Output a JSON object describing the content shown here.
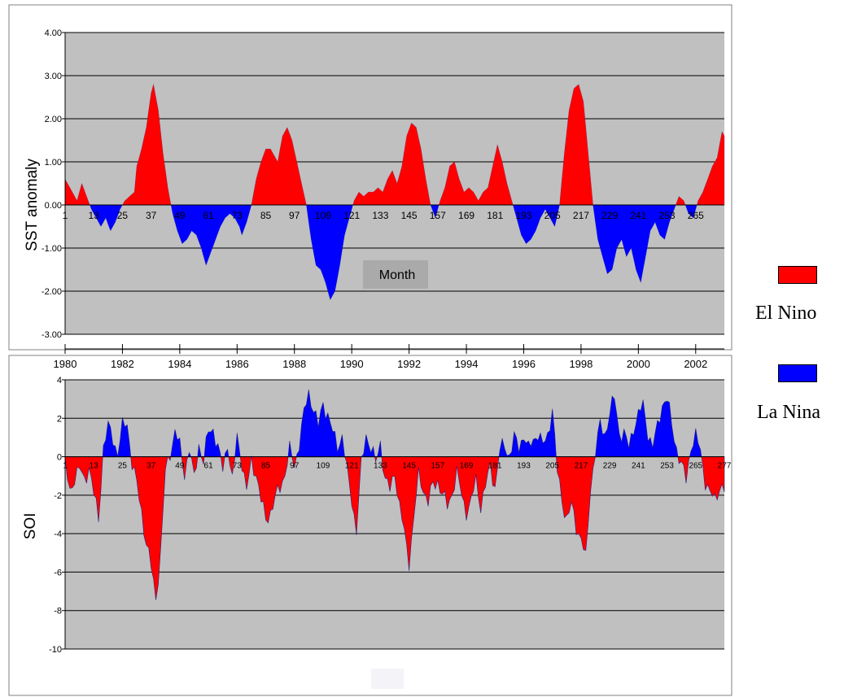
{
  "colors": {
    "el_nino": "#ff0000",
    "la_nina": "#0000ff",
    "plot_bg": "#c0c0c0",
    "grid": "#000000",
    "month_box": "#aaaaaa"
  },
  "legend": {
    "items": [
      {
        "label": "El Nino",
        "color": "#ff0000"
      },
      {
        "label": "La Nina",
        "color": "#0000ff"
      }
    ]
  },
  "years": [
    "1980",
    "1982",
    "1984",
    "1986",
    "1988",
    "1990",
    "1992",
    "1994",
    "1996",
    "1998",
    "2000",
    "2002"
  ],
  "chart_data": [
    {
      "type": "area",
      "ylabel": "SST anomaly",
      "xlabel": "Month",
      "ylim": [
        -3,
        4
      ],
      "yticks": [
        "4.00",
        "3.00",
        "2.00",
        "1.00",
        "0.00",
        "-1.00",
        "-2.00",
        "-3.00"
      ],
      "xticks": [
        "1",
        "13",
        "25",
        "37",
        "49",
        "61",
        "73",
        "85",
        "97",
        "109",
        "121",
        "133",
        "145",
        "157",
        "169",
        "181",
        "193",
        "205",
        "217",
        "229",
        "241",
        "253",
        "265"
      ],
      "grid": true,
      "x_range": [
        1,
        277
      ],
      "anchors": [
        [
          1,
          0.6
        ],
        [
          4,
          0.3
        ],
        [
          6,
          0.1
        ],
        [
          8,
          0.5
        ],
        [
          10,
          0.2
        ],
        [
          12,
          -0.1
        ],
        [
          14,
          -0.3
        ],
        [
          16,
          -0.5
        ],
        [
          18,
          -0.3
        ],
        [
          20,
          -0.6
        ],
        [
          22,
          -0.4
        ],
        [
          24,
          -0.1
        ],
        [
          26,
          0.1
        ],
        [
          28,
          0.2
        ],
        [
          30,
          0.3
        ],
        [
          31,
          0.9
        ],
        [
          33,
          1.3
        ],
        [
          35,
          1.8
        ],
        [
          37,
          2.6
        ],
        [
          38,
          2.8
        ],
        [
          40,
          2.2
        ],
        [
          42,
          1.2
        ],
        [
          44,
          0.4
        ],
        [
          46,
          -0.2
        ],
        [
          48,
          -0.6
        ],
        [
          50,
          -0.9
        ],
        [
          52,
          -0.8
        ],
        [
          54,
          -0.6
        ],
        [
          56,
          -0.7
        ],
        [
          58,
          -1.0
        ],
        [
          60,
          -1.4
        ],
        [
          62,
          -1.1
        ],
        [
          64,
          -0.8
        ],
        [
          66,
          -0.5
        ],
        [
          68,
          -0.3
        ],
        [
          70,
          -0.2
        ],
        [
          72,
          -0.3
        ],
        [
          74,
          -0.5
        ],
        [
          75,
          -0.7
        ],
        [
          77,
          -0.4
        ],
        [
          79,
          0.0
        ],
        [
          81,
          0.6
        ],
        [
          83,
          1.0
        ],
        [
          85,
          1.3
        ],
        [
          87,
          1.3
        ],
        [
          88,
          1.2
        ],
        [
          90,
          1.0
        ],
        [
          92,
          1.6
        ],
        [
          94,
          1.8
        ],
        [
          96,
          1.5
        ],
        [
          98,
          1.0
        ],
        [
          100,
          0.5
        ],
        [
          102,
          0.0
        ],
        [
          104,
          -0.8
        ],
        [
          106,
          -1.4
        ],
        [
          108,
          -1.5
        ],
        [
          110,
          -1.8
        ],
        [
          112,
          -2.2
        ],
        [
          114,
          -2.0
        ],
        [
          116,
          -1.4
        ],
        [
          118,
          -0.7
        ],
        [
          120,
          -0.3
        ],
        [
          122,
          0.1
        ],
        [
          124,
          0.3
        ],
        [
          126,
          0.2
        ],
        [
          128,
          0.3
        ],
        [
          130,
          0.3
        ],
        [
          132,
          0.4
        ],
        [
          134,
          0.3
        ],
        [
          136,
          0.6
        ],
        [
          138,
          0.8
        ],
        [
          140,
          0.5
        ],
        [
          142,
          0.9
        ],
        [
          144,
          1.6
        ],
        [
          146,
          1.9
        ],
        [
          148,
          1.8
        ],
        [
          150,
          1.3
        ],
        [
          152,
          0.6
        ],
        [
          154,
          0.0
        ],
        [
          156,
          -0.3
        ],
        [
          158,
          0.1
        ],
        [
          160,
          0.4
        ],
        [
          162,
          0.9
        ],
        [
          164,
          1.0
        ],
        [
          166,
          0.6
        ],
        [
          168,
          0.3
        ],
        [
          170,
          0.4
        ],
        [
          172,
          0.3
        ],
        [
          174,
          0.1
        ],
        [
          176,
          0.3
        ],
        [
          178,
          0.4
        ],
        [
          180,
          0.9
        ],
        [
          182,
          1.4
        ],
        [
          184,
          1.0
        ],
        [
          186,
          0.5
        ],
        [
          188,
          0.1
        ],
        [
          190,
          -0.3
        ],
        [
          192,
          -0.7
        ],
        [
          194,
          -0.9
        ],
        [
          196,
          -0.8
        ],
        [
          198,
          -0.6
        ],
        [
          200,
          -0.3
        ],
        [
          202,
          -0.1
        ],
        [
          204,
          -0.3
        ],
        [
          206,
          -0.5
        ],
        [
          208,
          0.0
        ],
        [
          210,
          1.2
        ],
        [
          212,
          2.2
        ],
        [
          214,
          2.7
        ],
        [
          216,
          2.8
        ],
        [
          218,
          2.4
        ],
        [
          220,
          1.2
        ],
        [
          222,
          0.0
        ],
        [
          224,
          -0.8
        ],
        [
          226,
          -1.2
        ],
        [
          228,
          -1.6
        ],
        [
          230,
          -1.5
        ],
        [
          232,
          -1.0
        ],
        [
          234,
          -0.8
        ],
        [
          236,
          -1.2
        ],
        [
          238,
          -1.0
        ],
        [
          240,
          -1.5
        ],
        [
          242,
          -1.8
        ],
        [
          244,
          -1.2
        ],
        [
          246,
          -0.6
        ],
        [
          248,
          -0.4
        ],
        [
          250,
          -0.7
        ],
        [
          252,
          -0.8
        ],
        [
          254,
          -0.4
        ],
        [
          256,
          -0.1
        ],
        [
          258,
          0.2
        ],
        [
          260,
          0.1
        ],
        [
          262,
          -0.2
        ],
        [
          264,
          -0.3
        ],
        [
          266,
          0.1
        ],
        [
          268,
          0.3
        ],
        [
          270,
          0.6
        ],
        [
          272,
          0.9
        ],
        [
          274,
          1.1
        ],
        [
          276,
          1.7
        ],
        [
          277,
          1.6
        ]
      ]
    },
    {
      "type": "area",
      "ylabel": "SOI",
      "ylim": [
        -10,
        4
      ],
      "yticks": [
        "4",
        "2",
        "0",
        "-2",
        "-4",
        "-6",
        "-8",
        "-10"
      ],
      "xticks": [
        "1",
        "13",
        "25",
        "37",
        "49",
        "61",
        "73",
        "85",
        "97",
        "109",
        "121",
        "133",
        "145",
        "157",
        "169",
        "181",
        "193",
        "205",
        "217",
        "229",
        "241",
        "253",
        "265",
        "277"
      ],
      "grid": true,
      "x_range": [
        1,
        277
      ],
      "anchors": [
        [
          1,
          -0.5
        ],
        [
          3,
          -1.8
        ],
        [
          5,
          -1.0
        ],
        [
          7,
          -0.7
        ],
        [
          9,
          -1.2
        ],
        [
          11,
          -0.5
        ],
        [
          13,
          -2.0
        ],
        [
          15,
          -3.2
        ],
        [
          17,
          0.5
        ],
        [
          19,
          1.5
        ],
        [
          21,
          1.0
        ],
        [
          23,
          0.2
        ],
        [
          25,
          1.5
        ],
        [
          27,
          1.8
        ],
        [
          29,
          -0.3
        ],
        [
          31,
          -1.5
        ],
        [
          33,
          -2.8
        ],
        [
          35,
          -4.5
        ],
        [
          37,
          -5.8
        ],
        [
          39,
          -7.3
        ],
        [
          41,
          -5.0
        ],
        [
          43,
          -0.8
        ],
        [
          45,
          0.3
        ],
        [
          47,
          1.3
        ],
        [
          49,
          0.5
        ],
        [
          51,
          -0.8
        ],
        [
          53,
          0.4
        ],
        [
          55,
          -1.2
        ],
        [
          57,
          0.7
        ],
        [
          59,
          -0.3
        ],
        [
          61,
          1.3
        ],
        [
          63,
          1.5
        ],
        [
          65,
          0.4
        ],
        [
          67,
          -0.7
        ],
        [
          69,
          0.8
        ],
        [
          71,
          -1.3
        ],
        [
          73,
          1.0
        ],
        [
          75,
          -0.2
        ],
        [
          77,
          -1.8
        ],
        [
          79,
          -0.3
        ],
        [
          81,
          -0.8
        ],
        [
          83,
          -2.3
        ],
        [
          85,
          -3.3
        ],
        [
          87,
          -2.8
        ],
        [
          89,
          -2.2
        ],
        [
          91,
          -1.6
        ],
        [
          93,
          -0.8
        ],
        [
          95,
          0.3
        ],
        [
          97,
          -0.5
        ],
        [
          99,
          0.8
        ],
        [
          101,
          2.2
        ],
        [
          103,
          3.3
        ],
        [
          105,
          2.6
        ],
        [
          107,
          1.5
        ],
        [
          109,
          2.8
        ],
        [
          111,
          2.2
        ],
        [
          113,
          1.2
        ],
        [
          115,
          0.6
        ],
        [
          117,
          1.1
        ],
        [
          119,
          -0.8
        ],
        [
          121,
          -2.2
        ],
        [
          123,
          -3.8
        ],
        [
          125,
          -0.5
        ],
        [
          127,
          1.2
        ],
        [
          129,
          0.5
        ],
        [
          131,
          -0.4
        ],
        [
          133,
          0.8
        ],
        [
          135,
          -1.2
        ],
        [
          137,
          -1.8
        ],
        [
          139,
          -0.7
        ],
        [
          141,
          -2.6
        ],
        [
          143,
          -4.0
        ],
        [
          145,
          -5.4
        ],
        [
          147,
          -3.2
        ],
        [
          149,
          -1.0
        ],
        [
          151,
          -1.6
        ],
        [
          153,
          -2.4
        ],
        [
          155,
          -1.5
        ],
        [
          157,
          -1.2
        ],
        [
          159,
          -2.0
        ],
        [
          161,
          -2.6
        ],
        [
          163,
          -1.8
        ],
        [
          165,
          -0.9
        ],
        [
          167,
          -2.0
        ],
        [
          169,
          -2.8
        ],
        [
          171,
          -2.4
        ],
        [
          173,
          -1.2
        ],
        [
          175,
          -2.5
        ],
        [
          177,
          -1.6
        ],
        [
          179,
          -0.5
        ],
        [
          181,
          -1.5
        ],
        [
          183,
          0.3
        ],
        [
          185,
          0.6
        ],
        [
          187,
          0.1
        ],
        [
          189,
          0.9
        ],
        [
          191,
          0.5
        ],
        [
          193,
          1.2
        ],
        [
          195,
          0.3
        ],
        [
          197,
          0.9
        ],
        [
          199,
          1.3
        ],
        [
          201,
          0.5
        ],
        [
          203,
          1.1
        ],
        [
          205,
          2.6
        ],
        [
          207,
          -0.8
        ],
        [
          209,
          -2.2
        ],
        [
          211,
          -3.2
        ],
        [
          213,
          -2.6
        ],
        [
          215,
          -3.6
        ],
        [
          217,
          -4.2
        ],
        [
          219,
          -5.4
        ],
        [
          221,
          -1.5
        ],
        [
          223,
          0.3
        ],
        [
          225,
          1.6
        ],
        [
          227,
          1.2
        ],
        [
          229,
          2.3
        ],
        [
          231,
          3.0
        ],
        [
          233,
          1.3
        ],
        [
          235,
          1.2
        ],
        [
          237,
          0.4
        ],
        [
          239,
          1.6
        ],
        [
          241,
          2.2
        ],
        [
          243,
          2.6
        ],
        [
          245,
          1.3
        ],
        [
          247,
          0.5
        ],
        [
          249,
          1.5
        ],
        [
          251,
          2.8
        ],
        [
          253,
          3.0
        ],
        [
          255,
          1.6
        ],
        [
          257,
          0.5
        ],
        [
          259,
          -0.5
        ],
        [
          261,
          -1.2
        ],
        [
          263,
          0.6
        ],
        [
          265,
          1.0
        ],
        [
          267,
          0.3
        ],
        [
          269,
          -1.2
        ],
        [
          271,
          -2.0
        ],
        [
          273,
          -2.2
        ],
        [
          275,
          -1.5
        ],
        [
          277,
          -1.8
        ]
      ]
    }
  ]
}
